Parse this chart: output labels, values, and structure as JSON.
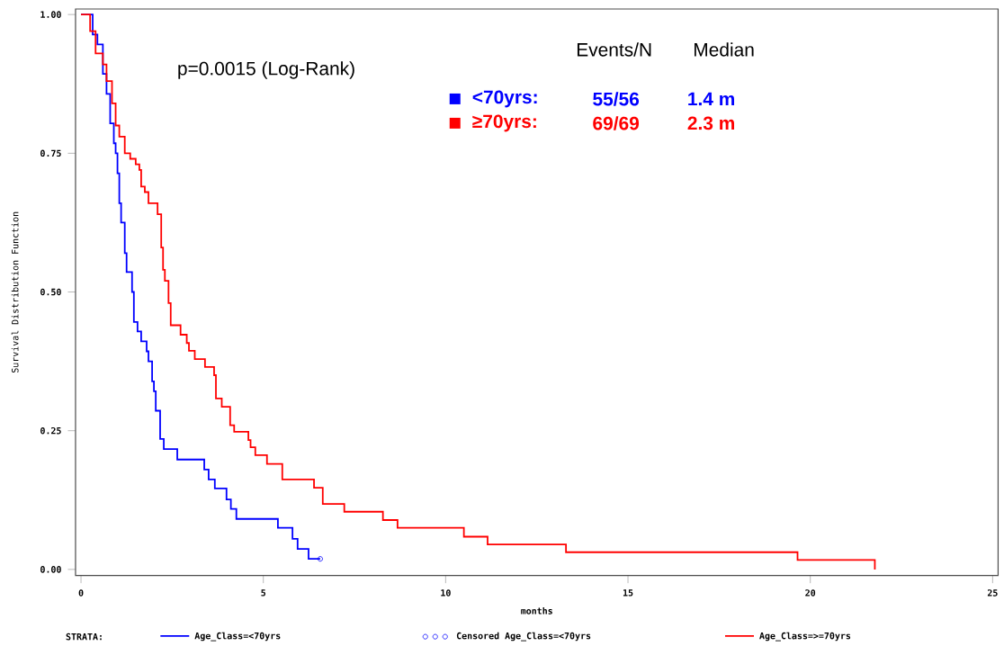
{
  "chart_data": {
    "type": "step",
    "xlabel": "months",
    "ylabel": "Survival Distribution Function",
    "legend_title": "STRATA:",
    "annotations": [
      "p=0.0015 (Log-Rank)",
      "Events/N",
      "Median",
      "<70yrs:",
      "55/56",
      "1.4 m",
      "≥70yrs:",
      "69/69",
      "2.3 m"
    ],
    "xlim": [
      -0.15,
      25.15
    ],
    "ylim": [
      -0.011,
      1.01
    ],
    "xticks": [
      0,
      5,
      10,
      15,
      20,
      25
    ],
    "yticks": [
      {
        "value": 0,
        "label": "0.00"
      },
      {
        "value": 0.25,
        "label": "0.25"
      },
      {
        "value": 0.5,
        "label": "0.50"
      },
      {
        "value": 0.75,
        "label": "0.75"
      },
      {
        "value": 1,
        "label": "1.00"
      }
    ],
    "grid": false,
    "legend": "bottom",
    "line_style": "solid",
    "series": [
      {
        "name": "Age_Class=<70yrs",
        "color": "#0000ff",
        "x": [
          0,
          0.32,
          0.45,
          0.6,
          0.7,
          0.8,
          0.9,
          0.95,
          1.0,
          1.05,
          1.1,
          1.2,
          1.25,
          1.4,
          1.45,
          1.55,
          1.65,
          1.8,
          1.85,
          1.95,
          2.0,
          2.05,
          2.17,
          2.27,
          2.64,
          3.38,
          3.5,
          3.67,
          3.99,
          4.11,
          4.26,
          5.4,
          5.8,
          5.94,
          6.24,
          6.56
        ],
        "values": [
          1,
          0.964,
          0.946,
          0.893,
          0.857,
          0.804,
          0.768,
          0.75,
          0.714,
          0.66,
          0.625,
          0.57,
          0.536,
          0.5,
          0.446,
          0.429,
          0.411,
          0.393,
          0.375,
          0.339,
          0.321,
          0.286,
          0.235,
          0.217,
          0.198,
          0.18,
          0.162,
          0.146,
          0.126,
          0.109,
          0.091,
          0.075,
          0.055,
          0.037,
          0.019,
          0.019
        ]
      },
      {
        "name": "Censored Age_Class=<70yrs",
        "color": "#0000ff",
        "type": "scatter",
        "marker": "circle",
        "x": [
          6.56
        ],
        "values": [
          0.019
        ]
      },
      {
        "name": "Age_Class=>=70yrs",
        "color": "#ff0000",
        "x": [
          0,
          0.25,
          0.4,
          0.6,
          0.7,
          0.85,
          0.95,
          1.05,
          1.2,
          1.35,
          1.5,
          1.6,
          1.65,
          1.75,
          1.85,
          2.1,
          2.2,
          2.25,
          2.3,
          2.4,
          2.46,
          2.73,
          2.9,
          2.96,
          3.12,
          3.4,
          3.65,
          3.7,
          3.86,
          4.09,
          4.2,
          4.59,
          4.65,
          4.78,
          5.1,
          5.52,
          6.39,
          6.63,
          7.22,
          8.28,
          8.68,
          10.5,
          11.15,
          13.3,
          19.65,
          21.77
        ],
        "values": [
          1,
          0.97,
          0.93,
          0.91,
          0.88,
          0.84,
          0.8,
          0.78,
          0.75,
          0.74,
          0.73,
          0.72,
          0.69,
          0.68,
          0.66,
          0.64,
          0.58,
          0.54,
          0.52,
          0.48,
          0.44,
          0.423,
          0.408,
          0.394,
          0.379,
          0.365,
          0.35,
          0.308,
          0.293,
          0.26,
          0.248,
          0.233,
          0.22,
          0.206,
          0.19,
          0.162,
          0.147,
          0.118,
          0.104,
          0.089,
          0.075,
          0.059,
          0.045,
          0.031,
          0.017,
          0
        ]
      }
    ]
  }
}
